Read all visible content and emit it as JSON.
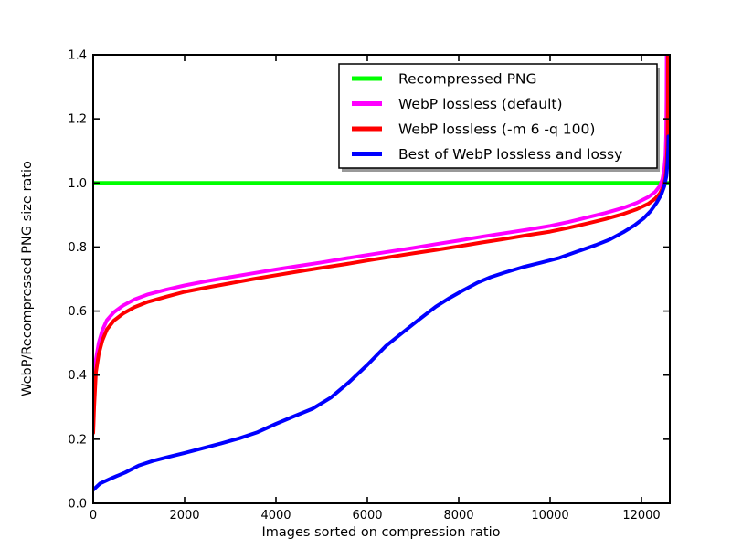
{
  "figure": {
    "background": "#ffffff",
    "frame_color": "#000000"
  },
  "chart_data": {
    "type": "line",
    "title": "",
    "xlabel": "Images sorted on compression ratio",
    "ylabel": "WebP/Recompressed PNG size ratio",
    "xlim": [
      0,
      12620
    ],
    "ylim": [
      0.0,
      1.4
    ],
    "xticks": [
      0,
      2000,
      4000,
      6000,
      8000,
      10000,
      12000
    ],
    "xtick_labels": [
      "0",
      "2000",
      "4000",
      "6000",
      "8000",
      "10000",
      "12000"
    ],
    "yticks": [
      0.0,
      0.2,
      0.4,
      0.6,
      0.8,
      1.0,
      1.2,
      1.4
    ],
    "ytick_labels": [
      "0.0",
      "0.2",
      "0.4",
      "0.6",
      "0.8",
      "1.0",
      "1.2",
      "1.4"
    ],
    "grid": false,
    "legend": {
      "position": "upper center inside",
      "background": "#ffffff",
      "border_color": "#000000",
      "shadow_color": "#999999"
    },
    "series": [
      {
        "name": "Recompressed PNG",
        "color": "#00ff00",
        "points": [
          [
            0,
            1.0
          ],
          [
            12620,
            1.0
          ]
        ]
      },
      {
        "name": "WebP lossless (default)",
        "color": "#ff00ff",
        "points": [
          [
            0,
            0.24
          ],
          [
            20,
            0.33
          ],
          [
            60,
            0.45
          ],
          [
            120,
            0.5
          ],
          [
            200,
            0.54
          ],
          [
            300,
            0.572
          ],
          [
            450,
            0.596
          ],
          [
            650,
            0.617
          ],
          [
            900,
            0.636
          ],
          [
            1200,
            0.652
          ],
          [
            1600,
            0.667
          ],
          [
            2000,
            0.68
          ],
          [
            2500,
            0.694
          ],
          [
            3000,
            0.706
          ],
          [
            3500,
            0.718
          ],
          [
            4000,
            0.73
          ],
          [
            4500,
            0.741
          ],
          [
            5000,
            0.752
          ],
          [
            5500,
            0.764
          ],
          [
            6000,
            0.775
          ],
          [
            6500,
            0.786
          ],
          [
            7000,
            0.797
          ],
          [
            7500,
            0.809
          ],
          [
            8000,
            0.82
          ],
          [
            8500,
            0.832
          ],
          [
            9000,
            0.843
          ],
          [
            9500,
            0.854
          ],
          [
            10000,
            0.866
          ],
          [
            10400,
            0.878
          ],
          [
            10800,
            0.892
          ],
          [
            11200,
            0.906
          ],
          [
            11600,
            0.922
          ],
          [
            11900,
            0.938
          ],
          [
            12150,
            0.956
          ],
          [
            12300,
            0.972
          ],
          [
            12400,
            0.99
          ],
          [
            12460,
            1.012
          ],
          [
            12500,
            1.045
          ],
          [
            12525,
            1.085
          ],
          [
            12540,
            1.15
          ],
          [
            12548,
            1.26
          ],
          [
            12552,
            1.4
          ]
        ]
      },
      {
        "name": "WebP lossless (-m 6 -q 100)",
        "color": "#ff0000",
        "points": [
          [
            0,
            0.22
          ],
          [
            20,
            0.3
          ],
          [
            60,
            0.41
          ],
          [
            120,
            0.465
          ],
          [
            200,
            0.508
          ],
          [
            300,
            0.543
          ],
          [
            450,
            0.57
          ],
          [
            650,
            0.592
          ],
          [
            900,
            0.612
          ],
          [
            1200,
            0.629
          ],
          [
            1600,
            0.645
          ],
          [
            2000,
            0.66
          ],
          [
            2500,
            0.674
          ],
          [
            3000,
            0.687
          ],
          [
            3500,
            0.7
          ],
          [
            4000,
            0.712
          ],
          [
            4500,
            0.724
          ],
          [
            5000,
            0.735
          ],
          [
            5500,
            0.746
          ],
          [
            6000,
            0.758
          ],
          [
            6500,
            0.769
          ],
          [
            7000,
            0.78
          ],
          [
            7500,
            0.791
          ],
          [
            8000,
            0.802
          ],
          [
            8500,
            0.814
          ],
          [
            9000,
            0.825
          ],
          [
            9500,
            0.837
          ],
          [
            10000,
            0.848
          ],
          [
            10400,
            0.86
          ],
          [
            10800,
            0.873
          ],
          [
            11200,
            0.887
          ],
          [
            11600,
            0.903
          ],
          [
            11900,
            0.918
          ],
          [
            12150,
            0.935
          ],
          [
            12300,
            0.951
          ],
          [
            12400,
            0.967
          ],
          [
            12470,
            0.986
          ],
          [
            12520,
            1.012
          ],
          [
            12550,
            1.055
          ],
          [
            12570,
            1.125
          ],
          [
            12578,
            1.25
          ],
          [
            12581,
            1.4
          ]
        ]
      },
      {
        "name": "Best of WebP lossless and lossy",
        "color": "#0000ff",
        "points": [
          [
            0,
            0.042
          ],
          [
            150,
            0.062
          ],
          [
            400,
            0.078
          ],
          [
            700,
            0.096
          ],
          [
            1000,
            0.118
          ],
          [
            1300,
            0.132
          ],
          [
            1600,
            0.143
          ],
          [
            2000,
            0.157
          ],
          [
            2400,
            0.172
          ],
          [
            2800,
            0.187
          ],
          [
            3200,
            0.203
          ],
          [
            3600,
            0.222
          ],
          [
            4000,
            0.248
          ],
          [
            4400,
            0.272
          ],
          [
            4800,
            0.295
          ],
          [
            5200,
            0.33
          ],
          [
            5600,
            0.378
          ],
          [
            6000,
            0.432
          ],
          [
            6400,
            0.49
          ],
          [
            6800,
            0.536
          ],
          [
            7100,
            0.57
          ],
          [
            7500,
            0.614
          ],
          [
            7800,
            0.641
          ],
          [
            8100,
            0.665
          ],
          [
            8400,
            0.688
          ],
          [
            8700,
            0.706
          ],
          [
            9000,
            0.72
          ],
          [
            9400,
            0.737
          ],
          [
            9800,
            0.751
          ],
          [
            10200,
            0.766
          ],
          [
            10600,
            0.786
          ],
          [
            11000,
            0.806
          ],
          [
            11300,
            0.823
          ],
          [
            11600,
            0.846
          ],
          [
            11850,
            0.868
          ],
          [
            12050,
            0.89
          ],
          [
            12200,
            0.912
          ],
          [
            12330,
            0.938
          ],
          [
            12430,
            0.963
          ],
          [
            12500,
            0.99
          ],
          [
            12545,
            1.022
          ],
          [
            12570,
            1.062
          ],
          [
            12585,
            1.11
          ],
          [
            12591,
            1.145
          ]
        ]
      }
    ]
  }
}
